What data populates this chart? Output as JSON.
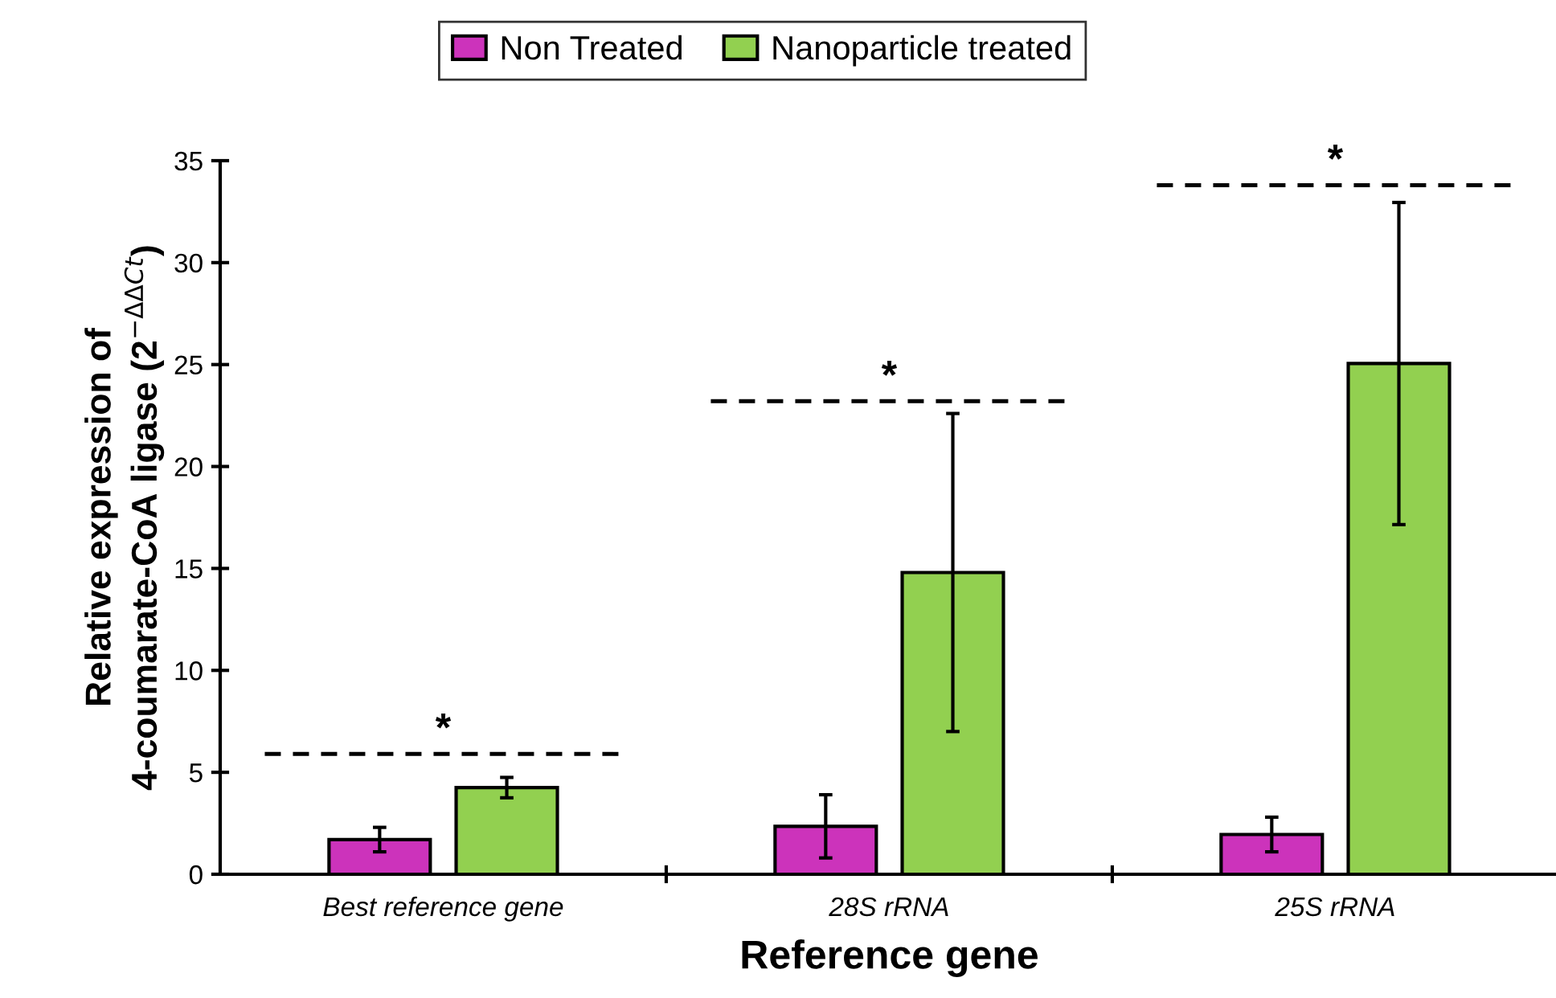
{
  "chart_data": {
    "type": "bar",
    "categories": [
      "Best reference gene",
      "28S rRNA",
      "25S rRNA"
    ],
    "series": [
      {
        "name": "Non Treated",
        "color": "#cc33bb",
        "values": [
          1.7,
          2.35,
          1.95
        ],
        "errors": [
          0.6,
          1.55,
          0.85
        ]
      },
      {
        "name": "Nanoparticle treated",
        "color": "#92d050",
        "values": [
          4.25,
          14.8,
          25.05
        ],
        "errors": [
          0.5,
          7.8,
          7.9
        ]
      }
    ],
    "xlabel": "Reference gene",
    "ylabel": "Relative expression of\n4-coumarate-CoA ligase (2$^{−ΔΔCt}$)",
    "ylim": [
      0,
      35
    ],
    "yticks": [
      0,
      5,
      10,
      15,
      20,
      25,
      30,
      35
    ],
    "ref_lines": [
      {
        "axis": "y",
        "value": 5.9,
        "label": "*",
        "line_style": "dashed"
      },
      {
        "axis": "y",
        "value": 23.2,
        "label": "*",
        "line_style": "dashed"
      },
      {
        "axis": "y",
        "value": 33.8,
        "label": "*",
        "line_style": "dashed"
      }
    ],
    "grid": false,
    "legend": "top"
  }
}
